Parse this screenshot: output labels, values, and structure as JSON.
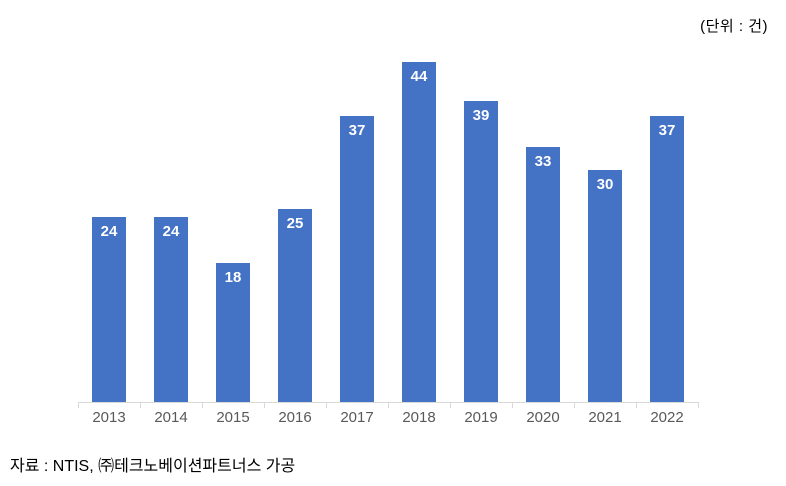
{
  "page": {
    "unit_label": "(단위 : 건)",
    "source_note": "자료 : NTIS, ㈜테크노베이션파트너스 가공"
  },
  "chart_data": {
    "type": "bar",
    "title": "",
    "categories": [
      "2013",
      "2014",
      "2015",
      "2016",
      "2017",
      "2018",
      "2019",
      "2020",
      "2021",
      "2022"
    ],
    "values": [
      24,
      24,
      18,
      25,
      37,
      44,
      39,
      33,
      30,
      37
    ],
    "unit": "건",
    "xlabel": "",
    "ylabel": "",
    "ylim": [
      0,
      44
    ],
    "grid": false,
    "y_axis_visible": false,
    "legend": "none",
    "value_label_position": "inside-top",
    "colors": {
      "bar_fill": "#4472C4",
      "value_label": "#FFFFFF",
      "axis_line": "#D9D9D9",
      "tick_mark": "#D9D9D9",
      "x_tick_label": "#595959"
    }
  }
}
